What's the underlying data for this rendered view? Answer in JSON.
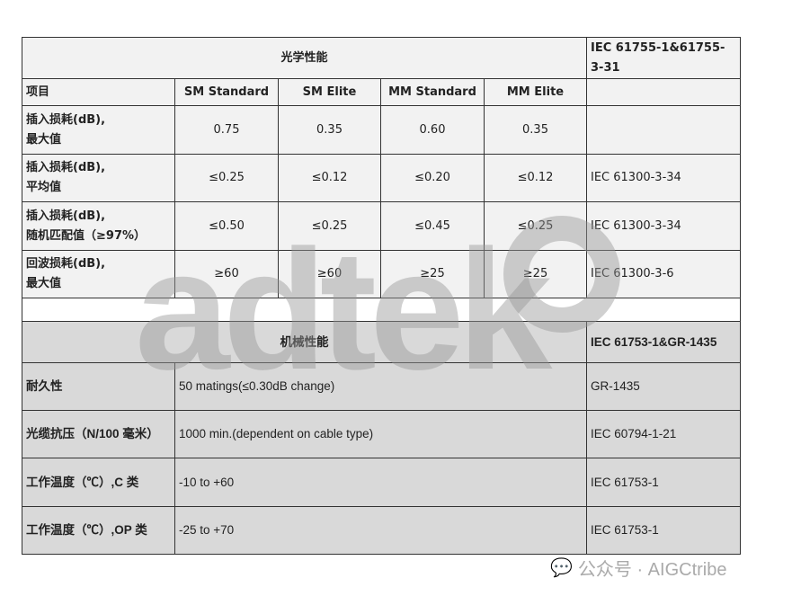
{
  "optical": {
    "title": "光学性能",
    "standard": "IEC 61755-1&61755-3-31",
    "headers": [
      "项目",
      "SM Standard",
      "SM Elite",
      "MM Standard",
      "MM Elite",
      ""
    ],
    "rows": [
      {
        "label1": "插入损耗(dB),",
        "label2": "最大值",
        "values": [
          "0.75",
          "0.35",
          "0.60",
          "0.35"
        ],
        "std": ""
      },
      {
        "label1": "插入损耗(dB),",
        "label2": "平均值",
        "values": [
          "≤0.25",
          "≤0.12",
          "≤0.20",
          "≤0.12"
        ],
        "std": "IEC 61300-3-34"
      },
      {
        "label1": "插入损耗(dB),",
        "label2": "随机匹配值（≥97%）",
        "values": [
          "≤0.50",
          "≤0.25",
          "≤0.45",
          "≤0.25"
        ],
        "std": "IEC 61300-3-34"
      },
      {
        "label1": "回波损耗(dB),",
        "label2": "最大值",
        "values": [
          "≥60",
          "≥60",
          "≥25",
          "≥25"
        ],
        "std": "IEC 61300-3-6"
      }
    ]
  },
  "mechanical": {
    "title": "机械性能",
    "standard": "IEC 61753-1&GR-1435",
    "rows": [
      {
        "label": "耐久性",
        "value": "50 matings(≤0.30dB change)",
        "std": "GR-1435"
      },
      {
        "label": "光缆抗压（N/100 毫米）",
        "value": "1000 min.(dependent on cable type)",
        "std": "IEC 60794-1-21"
      },
      {
        "label": "工作温度（℃）,C 类",
        "value": "-10 to +60",
        "std": "IEC 61753-1"
      },
      {
        "label": "工作温度（℃）,OP 类",
        "value": "-25 to +70",
        "std": "IEC 61753-1"
      }
    ]
  },
  "watermark": "adtek",
  "footer": {
    "text": "公众号 · AIGCtribe",
    "icon": "wechat-icon"
  }
}
